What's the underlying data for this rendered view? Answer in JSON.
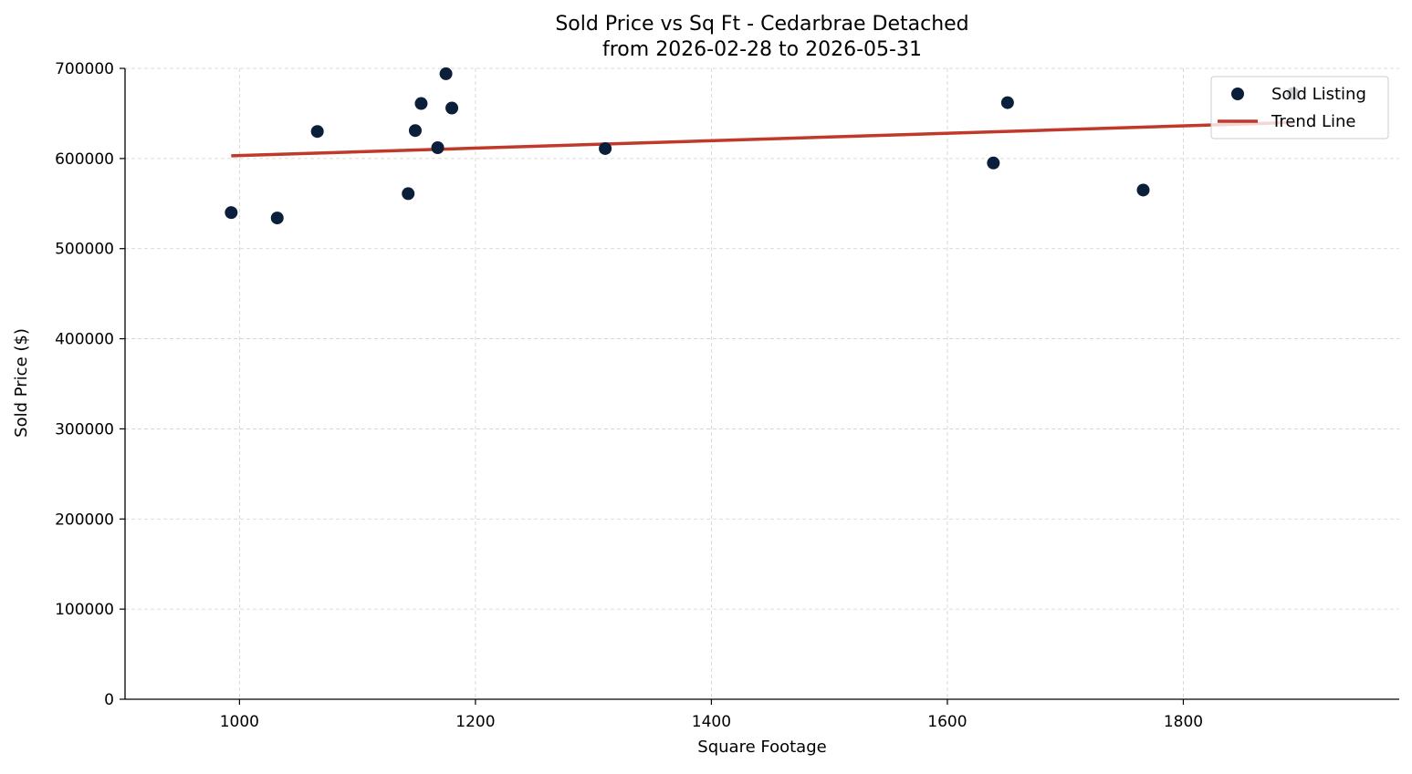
{
  "chart_data": {
    "type": "scatter",
    "title": "Sold Price vs Sq Ft - Cedarbrae Detached",
    "subtitle": "from 2026-02-28 to 2026-05-31",
    "xlabel": "Square Footage",
    "ylabel": "Sold Price ($)",
    "xlim": [
      903,
      1983
    ],
    "ylim": [
      0,
      700000
    ],
    "x_ticks": [
      1000,
      1200,
      1400,
      1600,
      1800
    ],
    "x_tick_labels": [
      "1000",
      "1200",
      "1400",
      "1600",
      "1800"
    ],
    "y_ticks": [
      0,
      100000,
      200000,
      300000,
      400000,
      500000,
      600000,
      700000
    ],
    "y_tick_labels": [
      "0",
      "100000",
      "200000",
      "300000",
      "400000",
      "500000",
      "600000",
      "700000"
    ],
    "grid": true,
    "legend_position": "top-right",
    "series": [
      {
        "name": "Sold Listing",
        "kind": "scatter",
        "color": "#0b1f3a",
        "x": [
          993,
          1032,
          1066,
          1143,
          1149,
          1154,
          1168,
          1175,
          1180,
          1310,
          1639,
          1651,
          1766,
          1893
        ],
        "y": [
          540000,
          534000,
          630000,
          561000,
          631000,
          661000,
          612000,
          694000,
          656000,
          611000,
          595000,
          662000,
          565000,
          672000
        ]
      },
      {
        "name": "Trend Line",
        "kind": "line",
        "color": "#c0392b",
        "x": [
          993,
          1893
        ],
        "y": [
          603000,
          640000
        ]
      }
    ]
  }
}
